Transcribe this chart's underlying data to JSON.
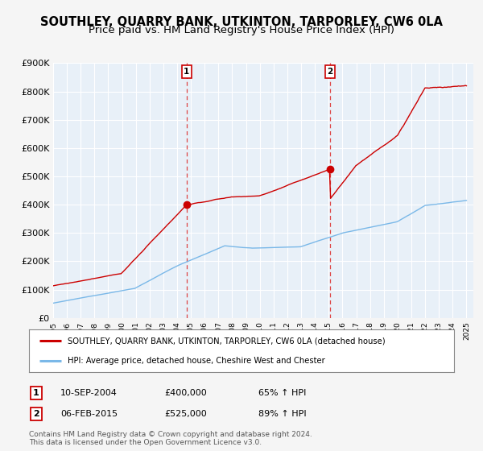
{
  "title": "SOUTHLEY, QUARRY BANK, UTKINTON, TARPORLEY, CW6 0LA",
  "subtitle": "Price paid vs. HM Land Registry's House Price Index (HPI)",
  "title_fontsize": 10.5,
  "subtitle_fontsize": 9.5,
  "background_color": "#f5f5f5",
  "plot_bg_color": "#e8f0f8",
  "grid_color": "#ffffff",
  "ylim": [
    0,
    900000
  ],
  "yticks": [
    0,
    100000,
    200000,
    300000,
    400000,
    500000,
    600000,
    700000,
    800000,
    900000
  ],
  "ytick_labels": [
    "£0",
    "£100K",
    "£200K",
    "£300K",
    "£400K",
    "£500K",
    "£600K",
    "£700K",
    "£800K",
    "£900K"
  ],
  "xstart_year": 1995,
  "xend_year": 2025,
  "marker1_date": 2004.69,
  "marker1_price": 400000,
  "marker1_label": "1",
  "marker2_date": 2015.09,
  "marker2_price": 525000,
  "marker2_label": "2",
  "hpi_line_color": "#7ab8e8",
  "price_line_color": "#cc0000",
  "marker_dot_color": "#cc0000",
  "vline_color": "#dd4444",
  "legend_label1": "SOUTHLEY, QUARRY BANK, UTKINTON, TARPORLEY, CW6 0LA (detached house)",
  "legend_label2": "HPI: Average price, detached house, Cheshire West and Chester",
  "ann1_date": "10-SEP-2004",
  "ann1_price": "£400,000",
  "ann1_hpi": "65% ↑ HPI",
  "ann2_date": "06-FEB-2015",
  "ann2_price": "£525,000",
  "ann2_hpi": "89% ↑ HPI",
  "footer1": "Contains HM Land Registry data © Crown copyright and database right 2024.",
  "footer2": "This data is licensed under the Open Government Licence v3.0."
}
